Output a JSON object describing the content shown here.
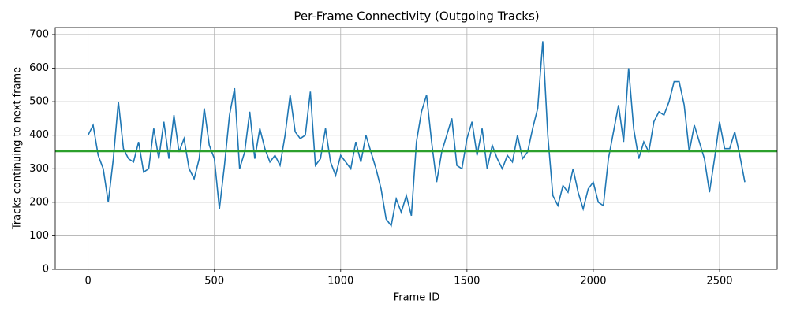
{
  "chart_data": {
    "type": "line",
    "title": "Per-Frame Connectivity (Outgoing Tracks)",
    "x_label": "Frame ID",
    "y_label": "Tracks continuing to next frame",
    "x": [
      0,
      20,
      40,
      60,
      80,
      100,
      120,
      140,
      160,
      180,
      200,
      220,
      240,
      260,
      280,
      300,
      320,
      340,
      360,
      380,
      400,
      420,
      440,
      460,
      480,
      500,
      520,
      540,
      560,
      580,
      600,
      620,
      640,
      660,
      680,
      700,
      720,
      740,
      760,
      780,
      800,
      820,
      840,
      860,
      880,
      900,
      920,
      940,
      960,
      980,
      1000,
      1020,
      1040,
      1060,
      1080,
      1100,
      1120,
      1140,
      1160,
      1180,
      1200,
      1220,
      1240,
      1260,
      1280,
      1300,
      1320,
      1340,
      1360,
      1380,
      1400,
      1420,
      1440,
      1460,
      1480,
      1500,
      1520,
      1540,
      1560,
      1580,
      1600,
      1620,
      1640,
      1660,
      1680,
      1700,
      1720,
      1740,
      1760,
      1780,
      1800,
      1820,
      1840,
      1860,
      1880,
      1900,
      1920,
      1940,
      1960,
      1980,
      2000,
      2020,
      2040,
      2060,
      2080,
      2100,
      2120,
      2140,
      2160,
      2180,
      2200,
      2220,
      2240,
      2260,
      2280,
      2300,
      2320,
      2340,
      2360,
      2380,
      2400,
      2420,
      2440,
      2460,
      2480,
      2500,
      2520,
      2540,
      2560,
      2580,
      2600
    ],
    "values": [
      400,
      430,
      340,
      300,
      200,
      330,
      500,
      360,
      330,
      320,
      380,
      290,
      300,
      420,
      330,
      440,
      330,
      460,
      350,
      390,
      300,
      270,
      330,
      480,
      370,
      330,
      180,
      310,
      460,
      540,
      300,
      350,
      470,
      330,
      420,
      360,
      320,
      340,
      310,
      400,
      520,
      410,
      390,
      400,
      530,
      310,
      330,
      420,
      320,
      280,
      340,
      320,
      300,
      380,
      320,
      400,
      350,
      300,
      240,
      150,
      130,
      210,
      170,
      220,
      160,
      380,
      470,
      520,
      380,
      260,
      350,
      400,
      450,
      310,
      300,
      390,
      440,
      340,
      420,
      300,
      370,
      330,
      300,
      340,
      320,
      400,
      330,
      350,
      420,
      480,
      680,
      400,
      220,
      190,
      250,
      230,
      300,
      230,
      180,
      240,
      260,
      200,
      190,
      330,
      410,
      490,
      380,
      600,
      420,
      330,
      380,
      350,
      440,
      470,
      460,
      500,
      560,
      560,
      490,
      350,
      430,
      380,
      330,
      230,
      330,
      440,
      360,
      360,
      410,
      340,
      260
    ],
    "color": "#1f77b4",
    "hline": {
      "value": 352,
      "color": "#2ca02c"
    },
    "xlim": [
      -130,
      2728
    ],
    "ylim": [
      0,
      721
    ],
    "xticks": [
      0,
      500,
      1000,
      1500,
      2000,
      2500
    ],
    "yticks": [
      0,
      100,
      200,
      300,
      400,
      500,
      600,
      700
    ],
    "grid": true
  }
}
